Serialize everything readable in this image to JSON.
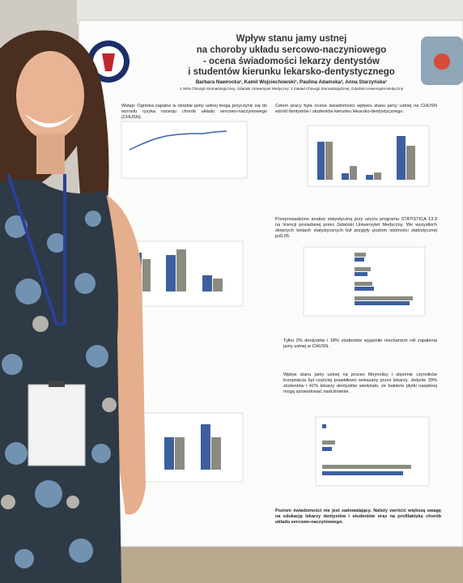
{
  "poster": {
    "title_lines": [
      "Wpływ stanu jamy ustnej",
      "na choroby układu sercowo-naczyniowego",
      "- ocena świadomości lekarzy dentystów",
      "i studentów kierunku lekarsko-dentystycznego"
    ],
    "authors": "Barbara Nawrocka¹, Kamil Wojciechowski¹, Paulina Adamska², Anna Starzyńska¹",
    "affiliation": "1 SKN Chirurgii Stomatologicznej, Gdański Uniwersytet Medyczny; 2 Zakład Chirurgii Stomatologicznej, Gdański Uniwersytet Medyczny",
    "intro": "Wstęp: Ogniska zapalne w obrębie jamy ustnej mogą przyczynić się do wzrostu ryzyka rozwoju chorób układu sercowo-naczyniowego (CHUSN).",
    "aim": "Celem pracy była ocena świadomości wpływu stanu jamy ustnej na CHUSN wśród dentystów i studentów kierunku lekarsko-dentystycznego.",
    "methods": "Przeprowadzono analizę statystyczną przy użyciu programu STATISTICA 13.3 na licencji posiadanej przez Gdański Uniwersytet Medyczny. We wszystkich słownych testach statystycznych był przyjęty poziom istotności statystycznej p≤0,05.",
    "results": "Tylko 3% dentystów i 18% studentów wyjaśniło mechanizm roli zapalenia jamy ustnej w CHUSN.",
    "results2": "Wpływ stanu jamy ustnej na proces fibrynolizy i stężenie czynników krzepnięcia był częściej prawidłowo wskazany przez lekarzy. Jedynie 39% studentów i 41% lekarzy dentystów wiedziało, że bakterie płytki nazębnej mogą spowodować nadciśnienie.",
    "conclusion": "Poziom świadomości nie jest zadowalający. Należy zwrócić większą uwagę na edukację lekarzy dentystów i studentów oraz na profilaktykę chorób układu sercowo-naczyniowego."
  }
}
